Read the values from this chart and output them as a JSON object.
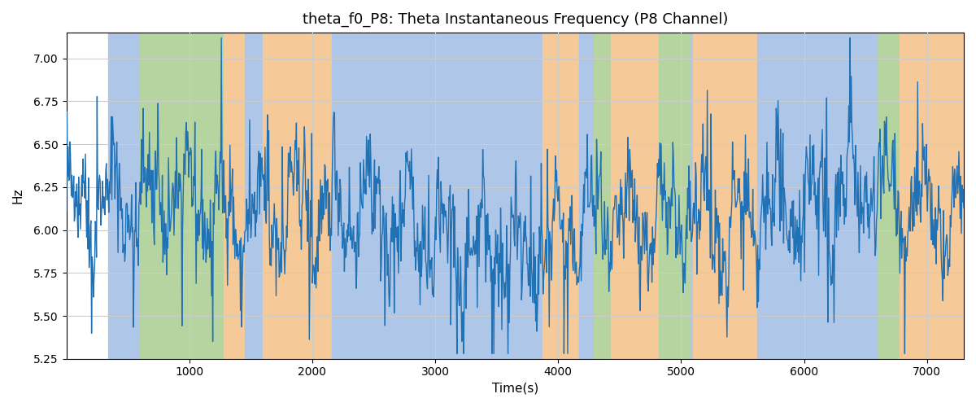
{
  "title": "theta_f0_P8: Theta Instantaneous Frequency (P8 Channel)",
  "xlabel": "Time(s)",
  "ylabel": "Hz",
  "xlim": [
    0,
    7300
  ],
  "ylim": [
    5.25,
    7.15
  ],
  "line_color": "#2171b5",
  "line_width": 1.0,
  "background_color": "#ffffff",
  "grid_color": "#cccccc",
  "title_fontsize": 13,
  "label_fontsize": 11,
  "tick_fontsize": 10,
  "bg_bands": [
    {
      "xmin": 340,
      "xmax": 600,
      "color": "#aec6e8"
    },
    {
      "xmin": 600,
      "xmax": 1280,
      "color": "#b5d4a0"
    },
    {
      "xmin": 1280,
      "xmax": 1450,
      "color": "#f5c998"
    },
    {
      "xmin": 1450,
      "xmax": 1600,
      "color": "#aec6e8"
    },
    {
      "xmin": 1600,
      "xmax": 2160,
      "color": "#f5c998"
    },
    {
      "xmin": 2160,
      "xmax": 3870,
      "color": "#aec6e8"
    },
    {
      "xmin": 3870,
      "xmax": 4170,
      "color": "#f5c998"
    },
    {
      "xmin": 4170,
      "xmax": 4290,
      "color": "#aec6e8"
    },
    {
      "xmin": 4290,
      "xmax": 4430,
      "color": "#b5d4a0"
    },
    {
      "xmin": 4430,
      "xmax": 4820,
      "color": "#f5c998"
    },
    {
      "xmin": 4820,
      "xmax": 5080,
      "color": "#b5d4a0"
    },
    {
      "xmin": 5080,
      "xmax": 5100,
      "color": "#aec6e8"
    },
    {
      "xmin": 5100,
      "xmax": 5620,
      "color": "#f5c998"
    },
    {
      "xmin": 5620,
      "xmax": 6600,
      "color": "#aec6e8"
    },
    {
      "xmin": 6600,
      "xmax": 6780,
      "color": "#b5d4a0"
    },
    {
      "xmin": 6780,
      "xmax": 7300,
      "color": "#f5c998"
    }
  ],
  "seed": 42
}
